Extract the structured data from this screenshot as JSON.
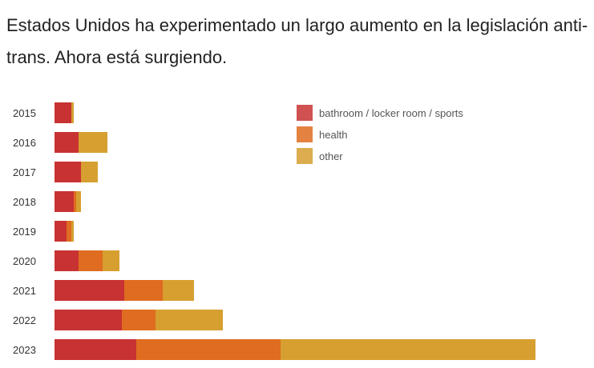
{
  "title": "Estados Unidos ha experimentado un largo aumento en la legislación anti-trans. Ahora está surgiendo.",
  "chart_data": {
    "type": "bar",
    "orientation": "horizontal",
    "stacked": true,
    "title": "Estados Unidos ha experimentado un largo aumento en la legislación anti-trans. Ahora está surgiendo.",
    "categories": [
      "2015",
      "2016",
      "2017",
      "2018",
      "2019",
      "2020",
      "2021",
      "2022",
      "2023"
    ],
    "series": [
      {
        "name": "bathroom / locker room / sports",
        "color": "#c83232",
        "values": [
          7,
          10,
          11,
          8,
          5,
          10,
          29,
          28,
          34
        ]
      },
      {
        "name": "health",
        "color": "#df6c20",
        "values": [
          0,
          0,
          0,
          1,
          2,
          10,
          16,
          14,
          60
        ]
      },
      {
        "name": "other",
        "color": "#d69f30",
        "values": [
          1,
          12,
          7,
          2,
          1,
          7,
          13,
          28,
          106
        ]
      }
    ],
    "xaxis_visible": false,
    "grid": false,
    "legend_placement": "top-right"
  }
}
